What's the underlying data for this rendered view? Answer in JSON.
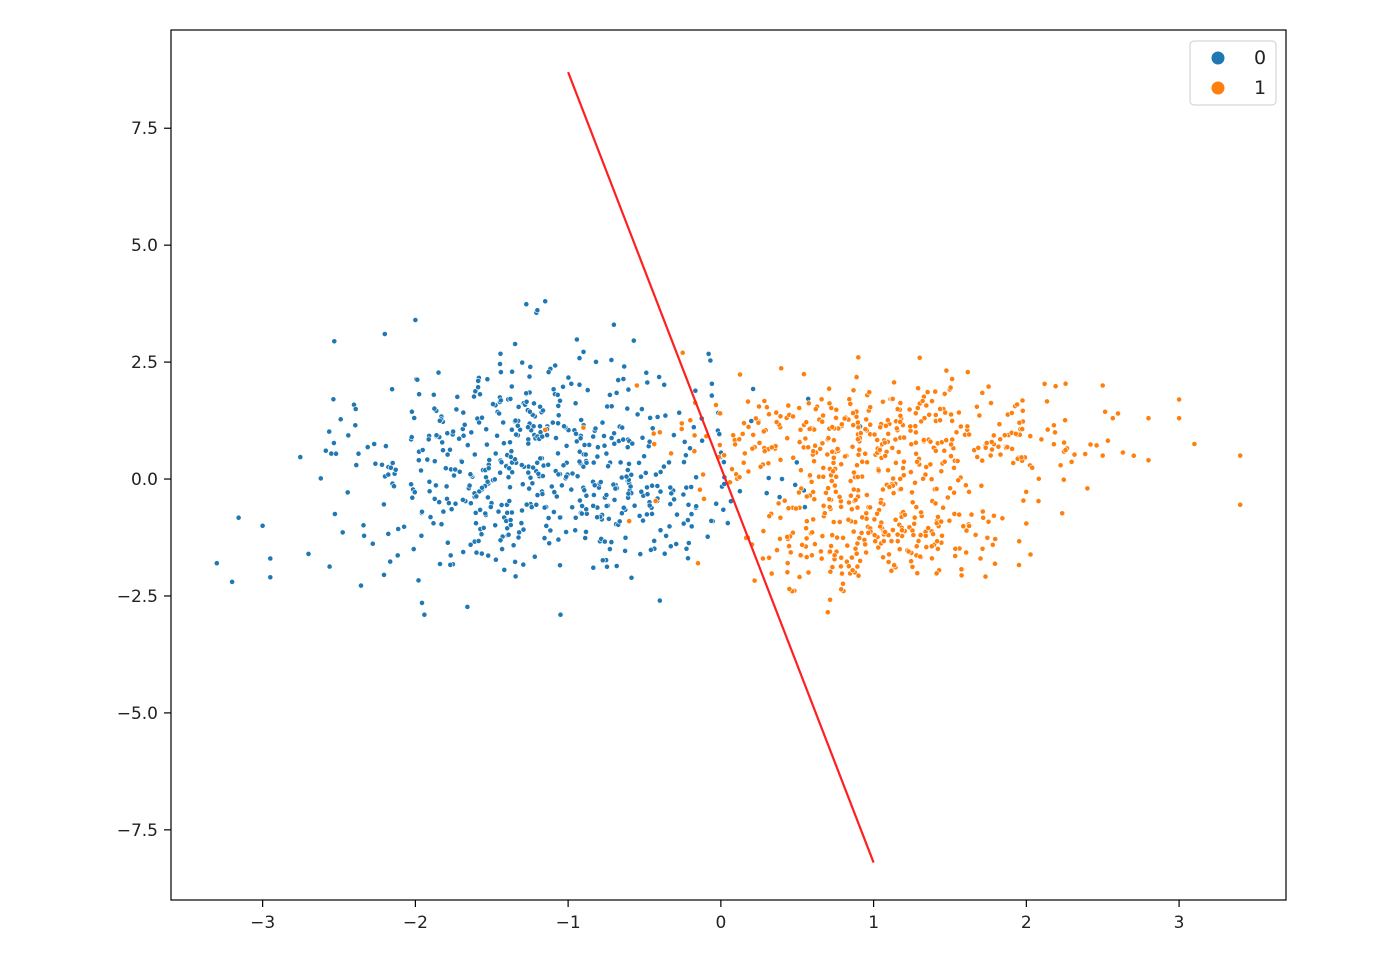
{
  "chart_data": {
    "type": "scatter",
    "title": "",
    "xlabel": "",
    "ylabel": "",
    "xlim": [
      -3.6,
      3.7
    ],
    "ylim": [
      -9.0,
      9.6
    ],
    "xticks": [
      -3,
      -2,
      -1,
      0,
      1,
      2,
      3
    ],
    "xtick_labels": [
      "−3",
      "−2",
      "−1",
      "0",
      "1",
      "2",
      "3"
    ],
    "yticks": [
      -7.5,
      -5.0,
      -2.5,
      0.0,
      2.5,
      5.0,
      7.5
    ],
    "ytick_labels": [
      "−7.5",
      "−5.0",
      "−2.5",
      "0.0",
      "2.5",
      "5.0",
      "7.5"
    ],
    "grid": false,
    "legend_position": "upper-right",
    "series": [
      {
        "name": "0",
        "color": "#1f77b4",
        "cluster_profile": [
          {
            "cx": -1.2,
            "cy": 0.9,
            "sx": 0.55,
            "sy": 1.05,
            "count": 330
          },
          {
            "cx": -0.9,
            "cy": -0.5,
            "sx": 0.55,
            "sy": 0.75,
            "count": 160
          },
          {
            "cx": -1.85,
            "cy": -0.8,
            "sx": 0.45,
            "sy": 0.9,
            "count": 80
          },
          {
            "cx": -0.1,
            "cy": 0.2,
            "sx": 0.35,
            "sy": 0.9,
            "count": 40
          }
        ],
        "outliers": [
          [
            -3.3,
            -1.8
          ],
          [
            -3.2,
            -2.2
          ],
          [
            -3.0,
            -1.0
          ],
          [
            -2.95,
            -1.7
          ],
          [
            -2.95,
            -2.1
          ],
          [
            -2.7,
            -1.6
          ],
          [
            -2.2,
            3.1
          ],
          [
            -2.0,
            3.4
          ],
          [
            -1.15,
            3.8
          ],
          [
            -0.7,
            3.3
          ],
          [
            -1.05,
            -2.9
          ],
          [
            -0.4,
            -2.6
          ],
          [
            0.4,
            0.0
          ],
          [
            0.3,
            -0.3
          ],
          [
            0.55,
            -0.6
          ]
        ]
      },
      {
        "name": "1",
        "color": "#ff7f0e",
        "cluster_profile": [
          {
            "cx": 1.1,
            "cy": -0.9,
            "sx": 0.4,
            "sy": 0.6,
            "count": 230
          },
          {
            "cx": 1.1,
            "cy": 0.9,
            "sx": 0.55,
            "sy": 0.6,
            "count": 220
          },
          {
            "cx": 0.45,
            "cy": 0.9,
            "sx": 0.4,
            "sy": 0.6,
            "count": 90
          },
          {
            "cx": 1.9,
            "cy": 0.95,
            "sx": 0.35,
            "sy": 0.45,
            "count": 60
          },
          {
            "cx": 0.75,
            "cy": -1.6,
            "sx": 0.3,
            "sy": 0.5,
            "count": 50
          }
        ],
        "outliers": [
          [
            3.4,
            0.5
          ],
          [
            3.4,
            -0.55
          ],
          [
            3.1,
            0.75
          ],
          [
            3.0,
            1.3
          ],
          [
            3.0,
            1.7
          ],
          [
            2.8,
            1.3
          ],
          [
            2.8,
            0.4
          ],
          [
            2.6,
            1.4
          ],
          [
            2.5,
            2.0
          ],
          [
            2.5,
            0.5
          ],
          [
            2.4,
            -0.2
          ],
          [
            2.0,
            -0.95
          ],
          [
            1.7,
            -1.7
          ],
          [
            0.7,
            -2.85
          ],
          [
            0.9,
            2.6
          ],
          [
            -0.25,
            2.7
          ],
          [
            -0.55,
            2.0
          ],
          [
            -0.4,
            1.0
          ],
          [
            -0.15,
            -1.8
          ],
          [
            -0.9,
            1.1
          ],
          [
            -0.6,
            -0.9
          ],
          [
            -1.15,
            1.05
          ]
        ]
      }
    ],
    "line": {
      "color": "#ff1f1f",
      "points": [
        [
          -1.0,
          8.7
        ],
        [
          1.0,
          -8.2
        ]
      ]
    }
  }
}
